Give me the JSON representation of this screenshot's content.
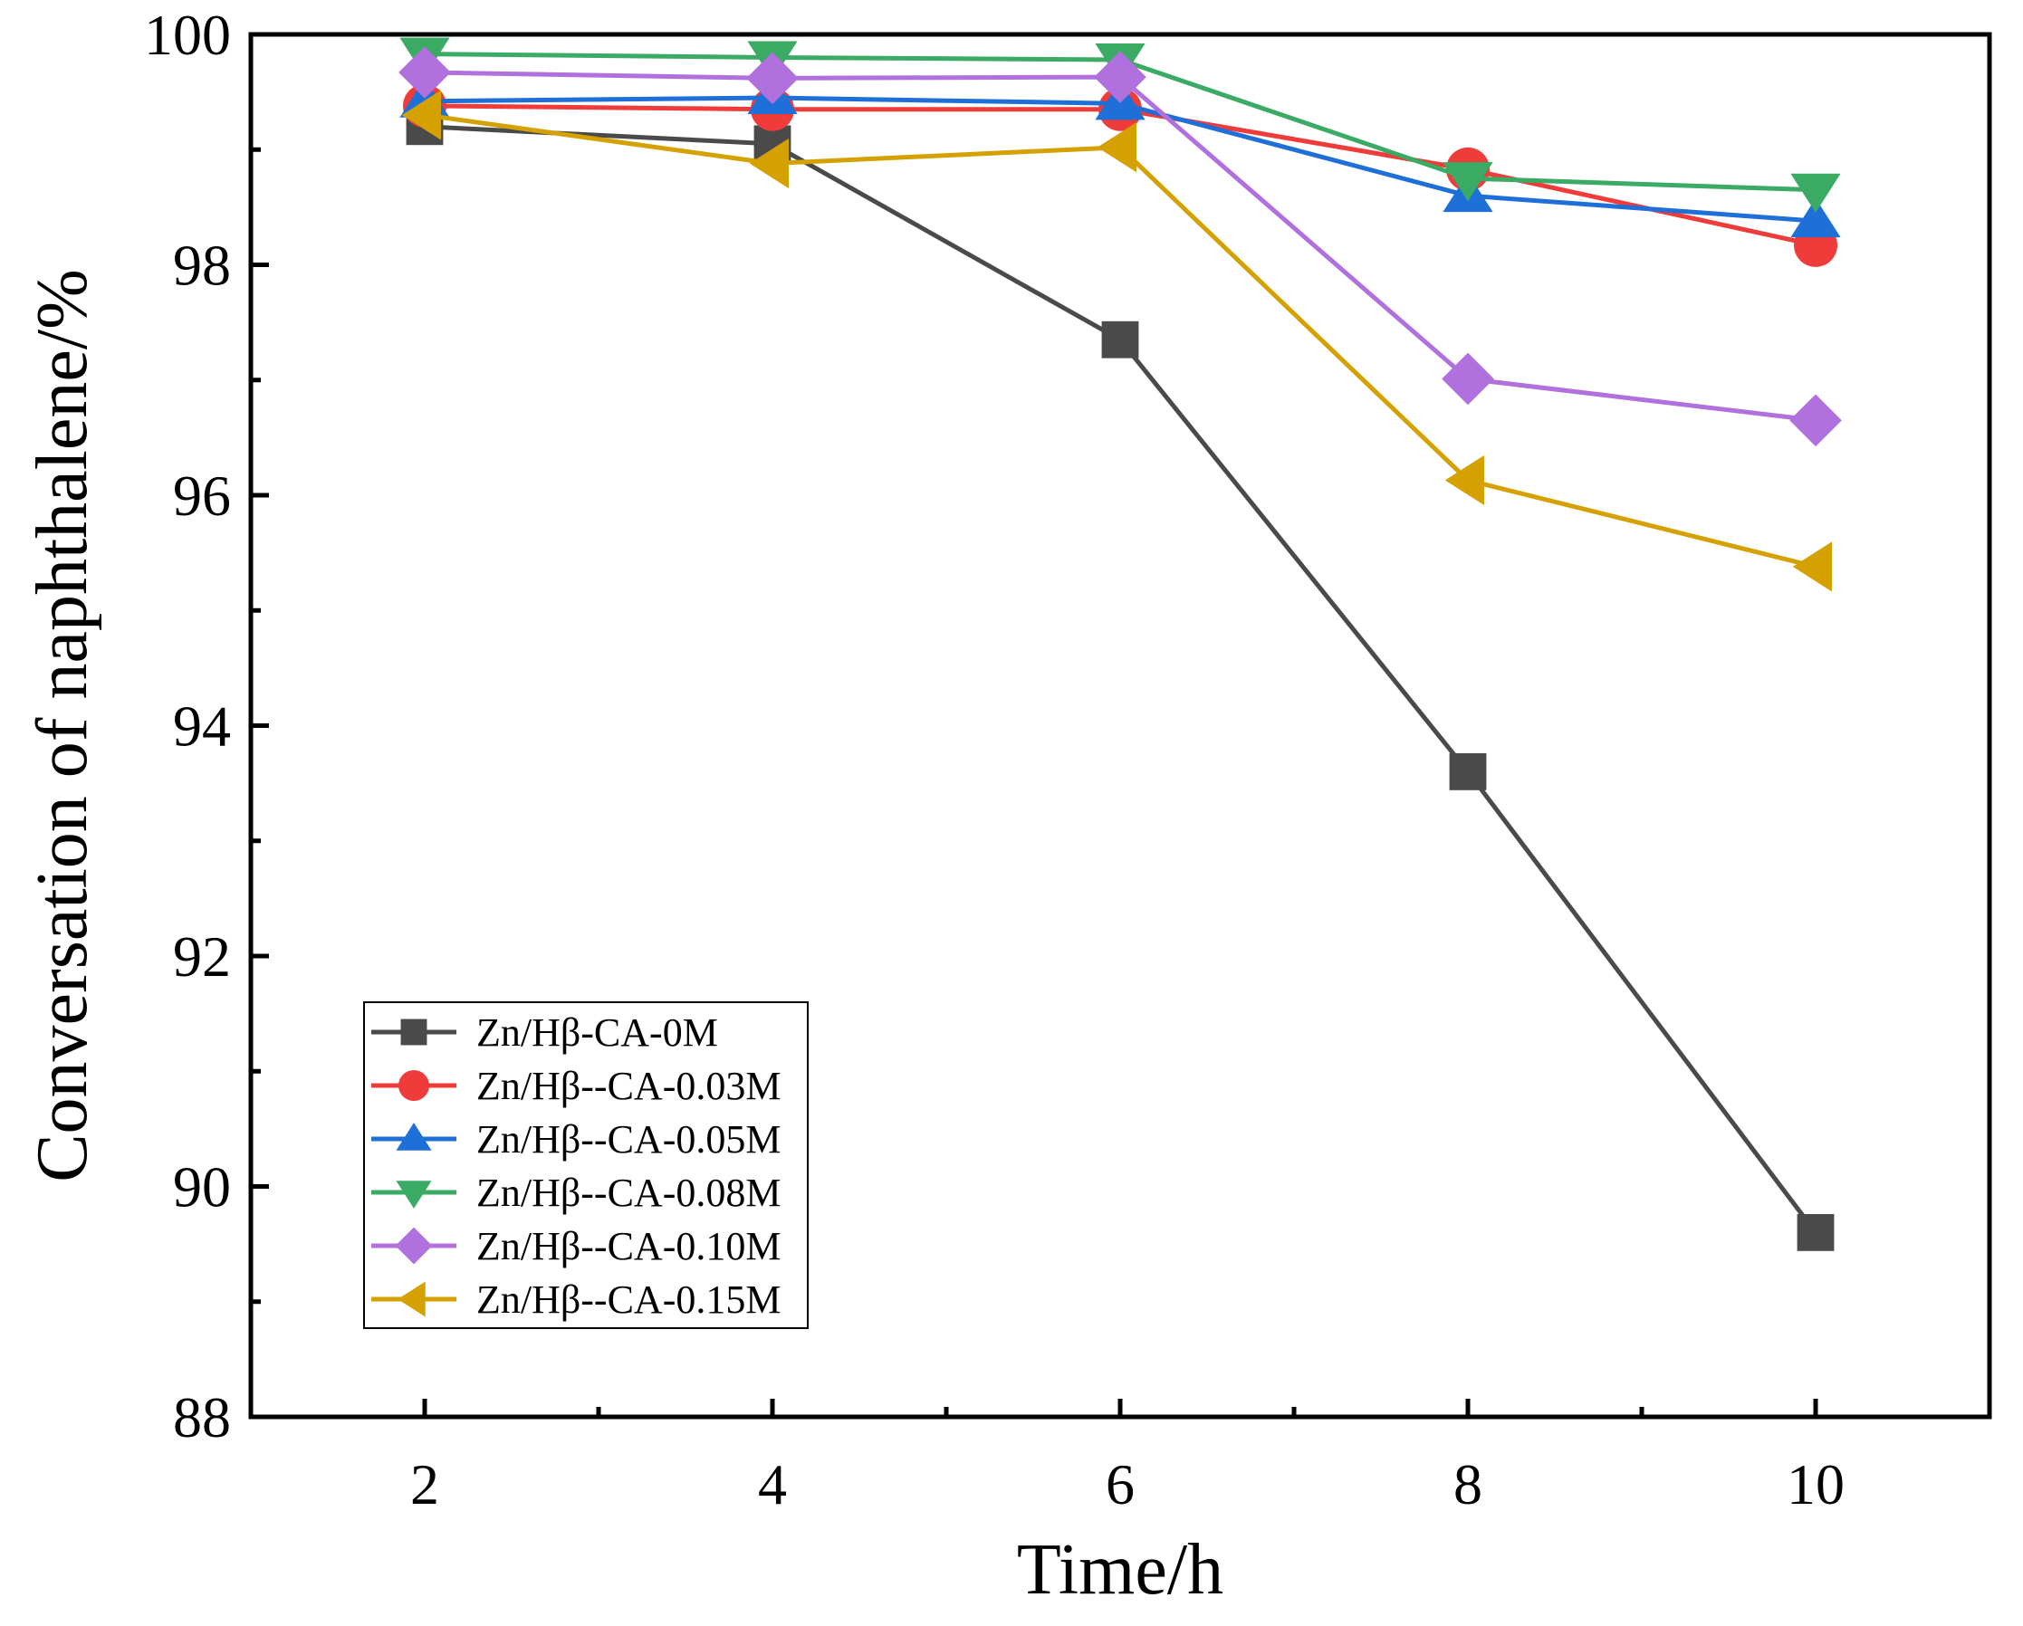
{
  "chart_data": {
    "type": "line",
    "xlabel": "Time/h",
    "ylabel": "Conversation of naphthalene/%",
    "x": [
      2,
      4,
      6,
      8,
      10
    ],
    "xlim": [
      1,
      11
    ],
    "ylim": [
      88,
      100
    ],
    "x_ticks": [
      "2",
      "4",
      "6",
      "8",
      "10"
    ],
    "y_ticks": [
      "88",
      "90",
      "92",
      "94",
      "96",
      "98",
      "100"
    ],
    "grid": false,
    "legend_position": "bottom-left",
    "series": [
      {
        "name": "Zn/Hβ-CA-0M",
        "marker": "square",
        "color": "#4a4a4a",
        "values": [
          99.2,
          99.05,
          97.35,
          93.6,
          89.6
        ]
      },
      {
        "name": "Zn/Hβ--CA-0.03M",
        "marker": "circle",
        "color": "#ef3b39",
        "values": [
          99.38,
          99.35,
          99.35,
          98.83,
          98.17
        ]
      },
      {
        "name": "Zn/Hβ--CA-0.05M",
        "marker": "triangle-up",
        "color": "#1f6fd9",
        "values": [
          99.42,
          99.45,
          99.4,
          98.6,
          98.38
        ]
      },
      {
        "name": "Zn/Hβ--CA-0.08M",
        "marker": "triangle-down",
        "color": "#3aaa64",
        "values": [
          99.83,
          99.8,
          99.78,
          98.75,
          98.65
        ]
      },
      {
        "name": "Zn/Hβ--CA-0.10M",
        "marker": "diamond",
        "color": "#b070dd",
        "values": [
          99.67,
          99.62,
          99.63,
          97.01,
          96.65
        ]
      },
      {
        "name": "Zn/Hβ--CA-0.15M",
        "marker": "triangle-left",
        "color": "#d4a100",
        "values": [
          99.3,
          98.88,
          99.02,
          96.13,
          95.38
        ]
      }
    ]
  }
}
